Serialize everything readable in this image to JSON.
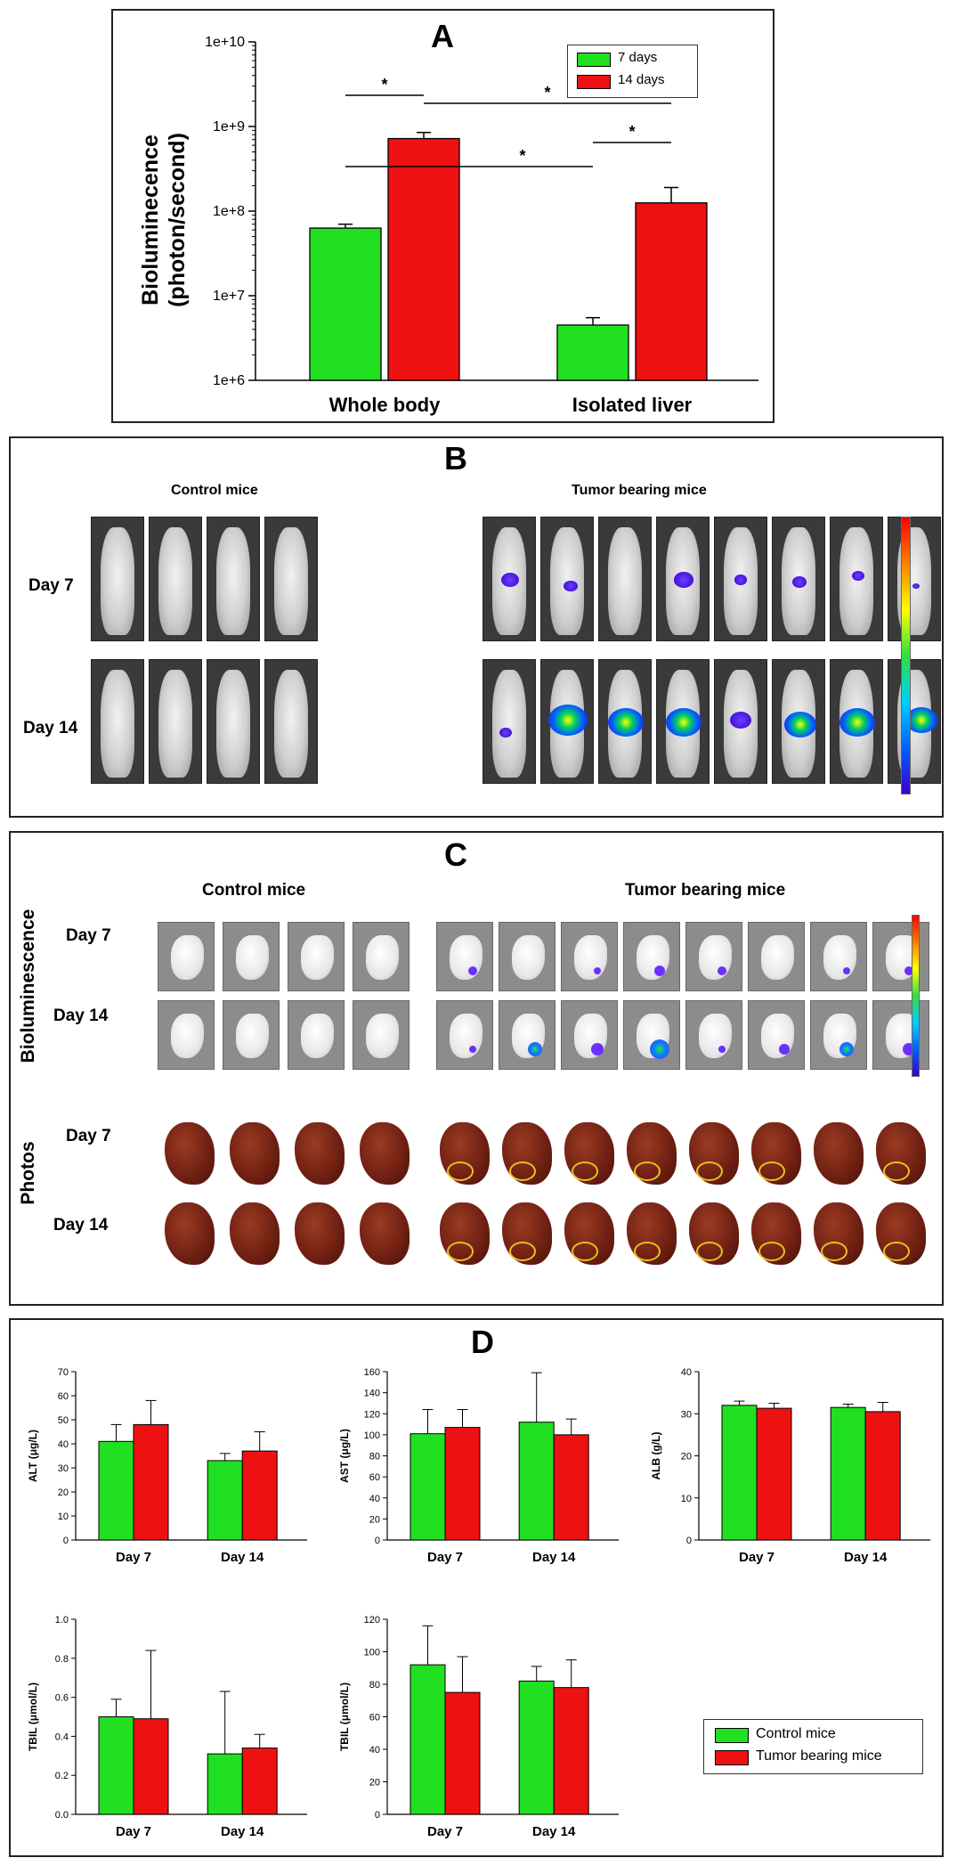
{
  "panelA": {
    "letter": "A",
    "ylabel_line1": "Bioluminecence",
    "ylabel_line2": "(photon/second)",
    "chart_data": {
      "type": "bar",
      "scale": "log",
      "categories": [
        "Whole body",
        "Isolated liver"
      ],
      "series": [
        {
          "name": "7 days",
          "values": [
            63000000,
            4500000
          ],
          "errors": [
            7000000,
            1000000
          ],
          "color": "#21e021"
        },
        {
          "name": "14 days",
          "values": [
            720000000,
            125000000
          ],
          "errors": [
            130000000,
            65000000
          ],
          "color": "#ee1111"
        }
      ],
      "ylim": [
        1000000,
        10000000000
      ],
      "yticks": [
        "1e+6",
        "1e+7",
        "1e+8",
        "1e+9",
        "1e+10"
      ],
      "significance": [
        "*",
        "*",
        "*",
        "*"
      ]
    },
    "legend": [
      "7 days",
      "14 days"
    ]
  },
  "panelB": {
    "letter": "B",
    "control_title": "Control mice",
    "tumor_title": "Tumor bearing mice",
    "row_labels": [
      "Day 7",
      "Day 14"
    ]
  },
  "panelC": {
    "letter": "C",
    "control_title": "Control mice",
    "tumor_title": "Tumor bearing mice",
    "side_label_top": "Bioluminescence",
    "side_label_bottom": "Photos",
    "row_labels": [
      "Day 7",
      "Day 14",
      "Day 7",
      "Day 14"
    ]
  },
  "panelD": {
    "letter": "D",
    "legend": [
      "Control mice",
      "Tumor bearing mice"
    ],
    "colors": {
      "control": "#21e021",
      "tumor": "#ee1111"
    },
    "charts": [
      {
        "type": "bar",
        "ylabel": "ALT (μg/L)",
        "categories": [
          "Day 7",
          "Day 14"
        ],
        "ylim": [
          0,
          70
        ],
        "yticks": [
          0,
          10,
          20,
          30,
          40,
          50,
          60,
          70
        ],
        "series": [
          {
            "name": "Control mice",
            "values": [
              41,
              33
            ],
            "errors": [
              7,
              3
            ]
          },
          {
            "name": "Tumor bearing mice",
            "values": [
              48,
              37
            ],
            "errors": [
              10,
              8
            ]
          }
        ]
      },
      {
        "type": "bar",
        "ylabel": "AST (μg/L)",
        "categories": [
          "Day 7",
          "Day 14"
        ],
        "ylim": [
          0,
          160
        ],
        "yticks": [
          0,
          20,
          40,
          60,
          80,
          100,
          120,
          140,
          160
        ],
        "series": [
          {
            "name": "Control mice",
            "values": [
              101,
              112
            ],
            "errors": [
              23,
              47
            ]
          },
          {
            "name": "Tumor bearing mice",
            "values": [
              107,
              100
            ],
            "errors": [
              17,
              15
            ]
          }
        ]
      },
      {
        "type": "bar",
        "ylabel": "ALB (g/L)",
        "categories": [
          "Day 7",
          "Day 14"
        ],
        "ylim": [
          0,
          40
        ],
        "yticks": [
          0,
          10,
          20,
          30,
          40
        ],
        "series": [
          {
            "name": "Control mice",
            "values": [
              32,
              31.5
            ],
            "errors": [
              1,
              0.8
            ]
          },
          {
            "name": "Tumor bearing mice",
            "values": [
              31.3,
              30.5
            ],
            "errors": [
              1.2,
              2.2
            ]
          }
        ]
      },
      {
        "type": "bar",
        "ylabel": "TBIL (μmol/L)",
        "categories": [
          "Day 7",
          "Day 14"
        ],
        "ylim": [
          0,
          1.0
        ],
        "yticks": [
          "0.0",
          "0.2",
          "0.4",
          "0.6",
          "0.8",
          "1.0"
        ],
        "series": [
          {
            "name": "Control mice",
            "values": [
              0.5,
              0.31
            ],
            "errors": [
              0.09,
              0.32
            ]
          },
          {
            "name": "Tumor bearing mice",
            "values": [
              0.49,
              0.34
            ],
            "errors": [
              0.35,
              0.07
            ]
          }
        ]
      },
      {
        "type": "bar",
        "ylabel": "TBIL (μmol/L)",
        "categories": [
          "Day 7",
          "Day 14"
        ],
        "ylim": [
          0,
          120
        ],
        "yticks": [
          0,
          20,
          40,
          60,
          80,
          100,
          120
        ],
        "series": [
          {
            "name": "Control mice",
            "values": [
              92,
              82
            ],
            "errors": [
              24,
              9
            ]
          },
          {
            "name": "Tumor bearing mice",
            "values": [
              75,
              78
            ],
            "errors": [
              22,
              17
            ]
          }
        ]
      }
    ]
  }
}
